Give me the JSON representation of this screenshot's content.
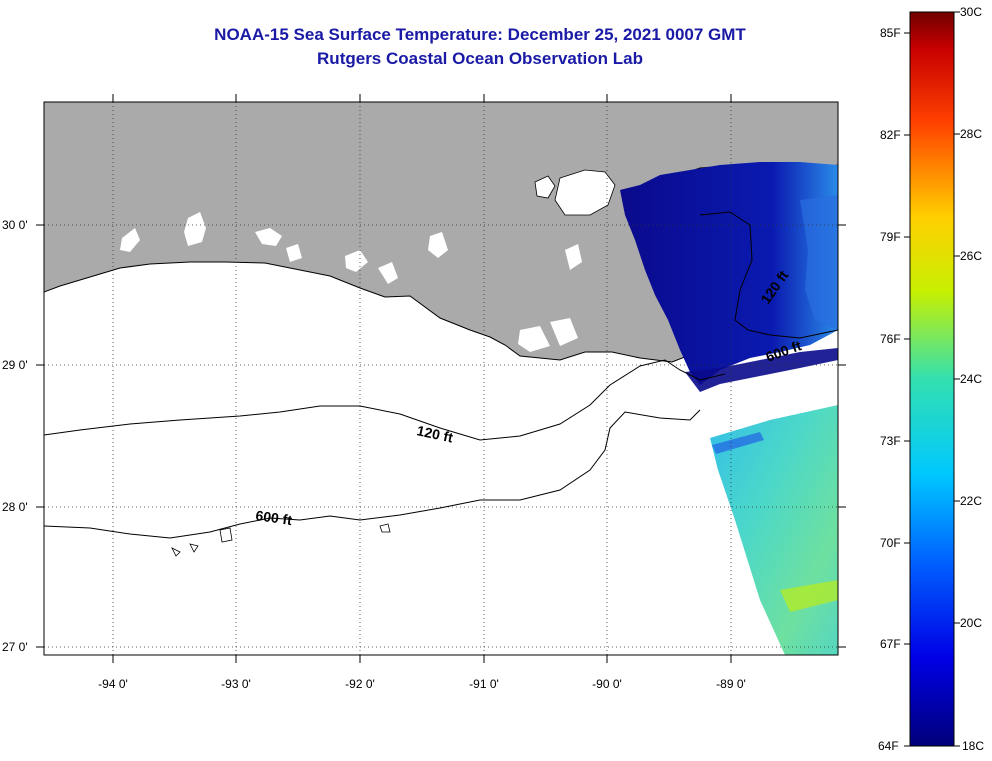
{
  "title_line1": "NOAA-15 Sea Surface Temperature:  December 25, 2021 0007 GMT",
  "title_line2": "Rutgers Coastal Ocean Observation Lab",
  "colors": {
    "title": "#1a1aa6",
    "land": "#aaaaaa",
    "cold": "#0a0a8c",
    "mid": "#33d0e0",
    "warm": "#7a0000"
  },
  "map": {
    "lat_labels": [
      "30 0'",
      "29 0'",
      "28 0'",
      "27 0'"
    ],
    "lon_labels": [
      "-94 0'",
      "-93 0'",
      "-92 0'",
      "-91 0'",
      "-90 0'",
      "-89 0'"
    ],
    "contour_labels": [
      "120 ft",
      "600 ft",
      "120 ft",
      "600 ft"
    ]
  },
  "colorbar": {
    "fahrenheit_labels": [
      "85F",
      "82F",
      "79F",
      "76F",
      "73F",
      "70F",
      "67F",
      "64F"
    ],
    "celsius_labels": [
      "30C",
      "28C",
      "26C",
      "24C",
      "22C",
      "20C",
      "18C"
    ]
  }
}
